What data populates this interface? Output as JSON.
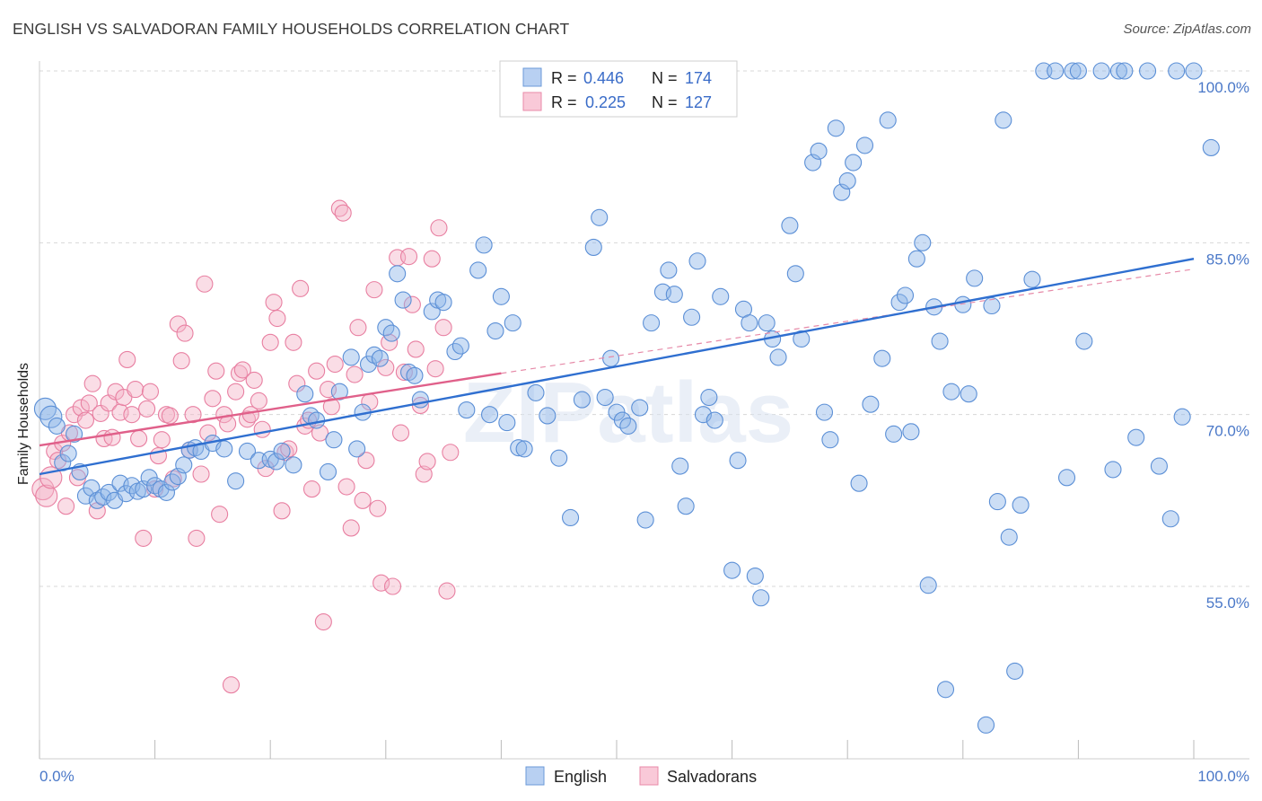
{
  "chart_data": {
    "type": "scatter",
    "title": "ENGLISH VS SALVADORAN FAMILY HOUSEHOLDS CORRELATION CHART",
    "source": "Source: ZipAtlas.com",
    "ylabel": "Family Households",
    "xlabel": "",
    "xlim": [
      0,
      100
    ],
    "ylim": [
      42,
      102
    ],
    "x_tick_labels": [
      "0.0%",
      "100.0%"
    ],
    "y_tick_labels": [
      "100.0%",
      "85.0%",
      "70.0%",
      "55.0%"
    ],
    "y_tick_values": [
      100,
      85,
      70,
      55
    ],
    "watermark": "ZIPatlas",
    "legend": {
      "rows": [
        {
          "r_label": "R =",
          "r_value": "0.446",
          "n_label": "N =",
          "n_value": "174"
        },
        {
          "r_label": "R =",
          "r_value": "0.225",
          "n_label": "N =",
          "n_value": "127"
        }
      ]
    },
    "series": [
      {
        "name": "English",
        "color": "#8fb6e8",
        "stroke": "#5b8fd6",
        "trend": {
          "x0": 0,
          "y0": 64.8,
          "x1": 100,
          "y1": 83.6,
          "color": "#2f6fd0"
        },
        "points": [
          [
            0.5,
            70.5
          ],
          [
            1,
            69.8
          ],
          [
            1.5,
            69
          ],
          [
            2,
            65.8
          ],
          [
            2.5,
            66.6
          ],
          [
            3,
            68.3
          ],
          [
            3.5,
            65
          ],
          [
            4,
            62.9
          ],
          [
            4.5,
            63.6
          ],
          [
            5,
            62.5
          ],
          [
            5.5,
            62.8
          ],
          [
            6,
            63.2
          ],
          [
            6.5,
            62.5
          ],
          [
            7,
            64
          ],
          [
            7.5,
            63.1
          ],
          [
            8,
            63.8
          ],
          [
            8.5,
            63.3
          ],
          [
            9,
            63.5
          ],
          [
            9.5,
            64.5
          ],
          [
            10,
            63.8
          ],
          [
            10.5,
            63.5
          ],
          [
            11,
            63.2
          ],
          [
            11.5,
            64.1
          ],
          [
            12,
            64.6
          ],
          [
            12.5,
            65.6
          ],
          [
            13,
            66.9
          ],
          [
            13.5,
            67.1
          ],
          [
            14,
            66.8
          ],
          [
            15,
            67.5
          ],
          [
            16,
            67
          ],
          [
            17,
            64.2
          ],
          [
            18,
            66.8
          ],
          [
            19,
            66
          ],
          [
            20,
            66.1
          ],
          [
            20.5,
            65.9
          ],
          [
            21,
            66.8
          ],
          [
            22,
            65.6
          ],
          [
            23,
            71.8
          ],
          [
            23.5,
            69.9
          ],
          [
            24,
            69.5
          ],
          [
            25,
            65
          ],
          [
            25.5,
            67.8
          ],
          [
            26,
            72
          ],
          [
            27,
            75
          ],
          [
            27.5,
            67
          ],
          [
            28,
            70.2
          ],
          [
            28.5,
            74.4
          ],
          [
            29,
            75.2
          ],
          [
            29.5,
            74.9
          ],
          [
            30,
            77.6
          ],
          [
            30.5,
            77.1
          ],
          [
            31,
            82.3
          ],
          [
            31.5,
            80
          ],
          [
            32,
            73.7
          ],
          [
            32.5,
            73.4
          ],
          [
            33,
            71.3
          ],
          [
            34,
            79
          ],
          [
            34.5,
            80
          ],
          [
            35,
            79.8
          ],
          [
            36,
            75.5
          ],
          [
            36.5,
            76
          ],
          [
            37,
            70.4
          ],
          [
            38,
            82.6
          ],
          [
            38.5,
            84.8
          ],
          [
            39,
            70
          ],
          [
            39.5,
            77.3
          ],
          [
            40,
            80.3
          ],
          [
            40.5,
            69.3
          ],
          [
            41,
            78
          ],
          [
            41.5,
            67.1
          ],
          [
            42,
            67
          ],
          [
            43,
            71.9
          ],
          [
            44,
            69.9
          ],
          [
            45,
            66.2
          ],
          [
            46,
            61
          ],
          [
            47,
            71.3
          ],
          [
            48,
            84.6
          ],
          [
            48.5,
            87.2
          ],
          [
            49,
            71.5
          ],
          [
            49.5,
            74.9
          ],
          [
            50,
            70.2
          ],
          [
            50.5,
            69.5
          ],
          [
            51,
            69
          ],
          [
            52,
            70.6
          ],
          [
            52.5,
            60.8
          ],
          [
            53,
            78
          ],
          [
            54,
            80.7
          ],
          [
            54.5,
            82.6
          ],
          [
            55,
            80.5
          ],
          [
            55.5,
            65.5
          ],
          [
            56,
            62
          ],
          [
            56.5,
            78.5
          ],
          [
            57,
            83.4
          ],
          [
            57.5,
            70
          ],
          [
            58,
            71.5
          ],
          [
            58.5,
            69.5
          ],
          [
            59,
            80.3
          ],
          [
            60,
            56.4
          ],
          [
            60.5,
            66
          ],
          [
            61,
            79.2
          ],
          [
            61.5,
            78
          ],
          [
            62,
            55.9
          ],
          [
            62.5,
            54
          ],
          [
            63,
            78
          ],
          [
            63.5,
            76.6
          ],
          [
            64,
            75
          ],
          [
            65,
            86.5
          ],
          [
            65.5,
            82.3
          ],
          [
            66,
            76.6
          ],
          [
            67,
            92
          ],
          [
            67.5,
            93
          ],
          [
            68,
            70.2
          ],
          [
            68.5,
            67.8
          ],
          [
            69,
            95
          ],
          [
            69.5,
            89.4
          ],
          [
            70,
            90.4
          ],
          [
            70.5,
            92
          ],
          [
            71,
            64
          ],
          [
            71.5,
            93.5
          ],
          [
            72,
            70.9
          ],
          [
            73,
            74.9
          ],
          [
            73.5,
            95.7
          ],
          [
            74,
            68.3
          ],
          [
            74.5,
            79.8
          ],
          [
            75,
            80.4
          ],
          [
            75.5,
            68.5
          ],
          [
            76,
            83.6
          ],
          [
            76.5,
            85
          ],
          [
            77,
            55.1
          ],
          [
            77.5,
            79.4
          ],
          [
            78,
            76.4
          ],
          [
            78.5,
            46
          ],
          [
            79,
            72
          ],
          [
            80,
            79.6
          ],
          [
            80.5,
            71.8
          ],
          [
            81,
            81.9
          ],
          [
            82,
            42.9
          ],
          [
            82.5,
            79.5
          ],
          [
            83,
            62.4
          ],
          [
            83.5,
            95.7
          ],
          [
            84,
            59.3
          ],
          [
            84.5,
            47.6
          ],
          [
            85,
            62.1
          ],
          [
            86,
            81.8
          ],
          [
            87,
            100
          ],
          [
            88,
            100
          ],
          [
            89,
            64.5
          ],
          [
            89.5,
            100
          ],
          [
            90,
            100
          ],
          [
            90.5,
            76.4
          ],
          [
            92,
            100
          ],
          [
            93,
            65.2
          ],
          [
            93.5,
            100
          ],
          [
            94,
            100
          ],
          [
            95,
            68
          ],
          [
            96,
            100
          ],
          [
            97,
            65.5
          ],
          [
            98,
            60.9
          ],
          [
            98.5,
            100
          ],
          [
            99,
            69.8
          ],
          [
            100,
            100
          ],
          [
            101.5,
            93.3
          ]
        ]
      },
      {
        "name": "Salvadorans",
        "color": "#f5b3c8",
        "stroke": "#e87fa1",
        "trend": {
          "x0": 0,
          "y0": 67.3,
          "x1": 40,
          "y1": 73.6,
          "color": "#e0608a"
        },
        "trend_dashed": {
          "x0": 40,
          "y0": 73.6,
          "x1": 100,
          "y1": 82.7
        },
        "points": [
          [
            0.3,
            63.5
          ],
          [
            0.6,
            62.9
          ],
          [
            1,
            64.5
          ],
          [
            1.3,
            66.8
          ],
          [
            1.6,
            66
          ],
          [
            2,
            67.5
          ],
          [
            2.3,
            62
          ],
          [
            2.6,
            68.4
          ],
          [
            3,
            70
          ],
          [
            3.3,
            64.5
          ],
          [
            3.6,
            70.6
          ],
          [
            4,
            69.5
          ],
          [
            4.3,
            71
          ],
          [
            4.6,
            72.7
          ],
          [
            5,
            61.6
          ],
          [
            5.3,
            70.1
          ],
          [
            5.6,
            67.9
          ],
          [
            6,
            71
          ],
          [
            6.3,
            68
          ],
          [
            6.6,
            72
          ],
          [
            7,
            70.2
          ],
          [
            7.3,
            71.5
          ],
          [
            7.6,
            74.8
          ],
          [
            8,
            70
          ],
          [
            8.3,
            72.2
          ],
          [
            8.6,
            67.9
          ],
          [
            9,
            59.2
          ],
          [
            9.3,
            70.5
          ],
          [
            9.6,
            72
          ],
          [
            10,
            63.5
          ],
          [
            10.3,
            66.4
          ],
          [
            10.6,
            67.8
          ],
          [
            11,
            70
          ],
          [
            11.3,
            69.9
          ],
          [
            11.6,
            64.4
          ],
          [
            12,
            77.9
          ],
          [
            12.3,
            74.7
          ],
          [
            12.6,
            77.1
          ],
          [
            13,
            66.9
          ],
          [
            13.3,
            70
          ],
          [
            13.6,
            59.2
          ],
          [
            14,
            64.8
          ],
          [
            14.3,
            81.4
          ],
          [
            14.6,
            68.4
          ],
          [
            15,
            71.4
          ],
          [
            15.3,
            73.8
          ],
          [
            15.6,
            61.3
          ],
          [
            16,
            70
          ],
          [
            16.3,
            69.2
          ],
          [
            16.6,
            46.4
          ],
          [
            17,
            72
          ],
          [
            17.3,
            73.6
          ],
          [
            17.6,
            73.9
          ],
          [
            18,
            69.6
          ],
          [
            18.3,
            70
          ],
          [
            18.6,
            73
          ],
          [
            19,
            71.2
          ],
          [
            19.3,
            68.7
          ],
          [
            19.6,
            65.3
          ],
          [
            20,
            76.3
          ],
          [
            20.3,
            79.8
          ],
          [
            20.6,
            78.4
          ],
          [
            21,
            61.6
          ],
          [
            21.3,
            66.7
          ],
          [
            21.6,
            67
          ],
          [
            22,
            76.3
          ],
          [
            22.3,
            72.7
          ],
          [
            22.6,
            81
          ],
          [
            23,
            69
          ],
          [
            23.3,
            69.5
          ],
          [
            23.6,
            63.5
          ],
          [
            24,
            73.8
          ],
          [
            24.3,
            68.4
          ],
          [
            24.6,
            51.9
          ],
          [
            25,
            72.2
          ],
          [
            25.3,
            70.7
          ],
          [
            25.6,
            74.4
          ],
          [
            26,
            88
          ],
          [
            26.3,
            87.6
          ],
          [
            26.6,
            63.7
          ],
          [
            27,
            60.1
          ],
          [
            27.3,
            73.5
          ],
          [
            27.6,
            77.6
          ],
          [
            28,
            62.5
          ],
          [
            28.3,
            66
          ],
          [
            28.6,
            71.1
          ],
          [
            29,
            80.9
          ],
          [
            29.3,
            61.8
          ],
          [
            29.6,
            55.3
          ],
          [
            30,
            74.1
          ],
          [
            30.3,
            76.3
          ],
          [
            30.6,
            55
          ],
          [
            31,
            83.7
          ],
          [
            31.3,
            68.4
          ],
          [
            31.6,
            73.7
          ],
          [
            32,
            83.8
          ],
          [
            32.3,
            79.6
          ],
          [
            32.6,
            75.7
          ],
          [
            33,
            70.8
          ],
          [
            33.3,
            64.8
          ],
          [
            33.6,
            65.9
          ],
          [
            34,
            83.6
          ],
          [
            34.3,
            74
          ],
          [
            34.6,
            86.3
          ],
          [
            35,
            77.6
          ],
          [
            35.3,
            54.6
          ],
          [
            35.6,
            66.7
          ]
        ]
      }
    ]
  },
  "bottom_legend": {
    "english": "English",
    "salvadorans": "Salvadorans"
  }
}
